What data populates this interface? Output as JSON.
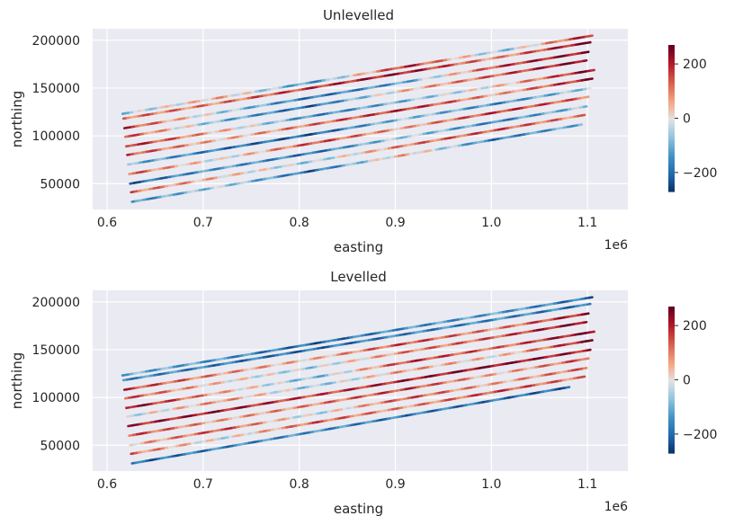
{
  "chart_data": [
    {
      "type": "scatter",
      "title": "Unlevelled",
      "xlabel": "easting",
      "ylabel": "northing",
      "x_offset_label": "1e6",
      "xlim": [
        0.585,
        1.142
      ],
      "ylim": [
        23000,
        212000
      ],
      "xticks": [
        0.6,
        0.7,
        0.8,
        0.9,
        1.0,
        1.1
      ],
      "xtick_labels": [
        "0.6",
        "0.7",
        "0.8",
        "0.9",
        "1.0",
        "1.1"
      ],
      "yticks": [
        50000,
        100000,
        150000,
        200000
      ],
      "ytick_labels": [
        "50000",
        "100000",
        "150000",
        "200000"
      ],
      "colorbar": {
        "ticks": [
          -200,
          0,
          200
        ],
        "tick_labels": [
          "−200",
          "0",
          "200"
        ],
        "range": [
          -270,
          270
        ],
        "cmap": "RdBu_r"
      },
      "grid": true,
      "flight_lines_note": "parallel survey lines rising west to east, coloured by residual value",
      "series_lines": [
        {
          "x": [
            0.626,
            1.095
          ],
          "y": [
            31000,
            112000
          ],
          "profile": [
            -150,
            -40,
            -200,
            60,
            -170,
            -90
          ]
        },
        {
          "x": [
            0.625,
            1.098
          ],
          "y": [
            41000,
            122000
          ],
          "profile": [
            120,
            40,
            -60,
            110,
            150,
            90
          ]
        },
        {
          "x": [
            0.624,
            1.1
          ],
          "y": [
            50000,
            131000
          ],
          "profile": [
            -200,
            -120,
            -180,
            -40,
            -160,
            -60
          ]
        },
        {
          "x": [
            0.623,
            1.102
          ],
          "y": [
            60000,
            141000
          ],
          "profile": [
            140,
            -20,
            160,
            60,
            180,
            120
          ]
        },
        {
          "x": [
            0.622,
            1.104
          ],
          "y": [
            70000,
            150000
          ],
          "profile": [
            -90,
            -180,
            -210,
            -60,
            -150,
            -40
          ]
        },
        {
          "x": [
            0.621,
            1.106
          ],
          "y": [
            80000,
            160000
          ],
          "profile": [
            160,
            40,
            120,
            190,
            60,
            230
          ]
        },
        {
          "x": [
            0.62,
            1.108
          ],
          "y": [
            89000,
            169000
          ],
          "profile": [
            200,
            50,
            -160,
            -80,
            30,
            250
          ]
        },
        {
          "x": [
            0.619,
            1.1
          ],
          "y": [
            99000,
            179000
          ],
          "profile": [
            160,
            -90,
            -200,
            40,
            140,
            260
          ]
        },
        {
          "x": [
            0.618,
            1.102
          ],
          "y": [
            108000,
            188000
          ],
          "profile": [
            180,
            -40,
            -180,
            -120,
            170,
            240
          ]
        },
        {
          "x": [
            0.617,
            1.104
          ],
          "y": [
            118000,
            198000
          ],
          "profile": [
            120,
            100,
            180,
            220,
            80,
            260
          ]
        },
        {
          "x": [
            0.616,
            1.106
          ],
          "y": [
            123000,
            205000
          ],
          "profile": [
            -60,
            60,
            -140,
            200,
            -80,
            230
          ]
        }
      ]
    },
    {
      "type": "scatter",
      "title": "Levelled",
      "xlabel": "easting",
      "ylabel": "northing",
      "x_offset_label": "1e6",
      "xlim": [
        0.585,
        1.142
      ],
      "ylim": [
        23000,
        212000
      ],
      "xticks": [
        0.6,
        0.7,
        0.8,
        0.9,
        1.0,
        1.1
      ],
      "xtick_labels": [
        "0.6",
        "0.7",
        "0.8",
        "0.9",
        "1.0",
        "1.1"
      ],
      "yticks": [
        50000,
        100000,
        150000,
        200000
      ],
      "ytick_labels": [
        "50000",
        "100000",
        "150000",
        "200000"
      ],
      "colorbar": {
        "ticks": [
          -200,
          0,
          200
        ],
        "tick_labels": [
          "−200",
          "0",
          "200"
        ],
        "range": [
          -270,
          270
        ],
        "cmap": "RdBu_r"
      },
      "grid": true,
      "series_lines": [
        {
          "x": [
            0.626,
            1.082
          ],
          "y": [
            31000,
            111000
          ],
          "profile": [
            -200,
            -160,
            -140,
            -170,
            -180,
            -200
          ]
        },
        {
          "x": [
            0.625,
            1.098
          ],
          "y": [
            41000,
            122000
          ],
          "profile": [
            120,
            -20,
            140,
            80,
            160,
            100
          ]
        },
        {
          "x": [
            0.624,
            1.1
          ],
          "y": [
            50000,
            131000
          ],
          "profile": [
            40,
            160,
            -40,
            150,
            60,
            130
          ]
        },
        {
          "x": [
            0.623,
            1.102
          ],
          "y": [
            60000,
            141000
          ],
          "profile": [
            160,
            60,
            100,
            170,
            40,
            160
          ]
        },
        {
          "x": [
            0.622,
            1.104
          ],
          "y": [
            70000,
            150000
          ],
          "profile": [
            200,
            220,
            160,
            210,
            240,
            200
          ]
        },
        {
          "x": [
            0.621,
            1.106
          ],
          "y": [
            80000,
            160000
          ],
          "profile": [
            -30,
            90,
            -70,
            80,
            20,
            250
          ]
        },
        {
          "x": [
            0.62,
            1.108
          ],
          "y": [
            89000,
            169000
          ],
          "profile": [
            240,
            60,
            -90,
            180,
            120,
            260
          ]
        },
        {
          "x": [
            0.619,
            1.1
          ],
          "y": [
            99000,
            179000
          ],
          "profile": [
            150,
            30,
            -50,
            100,
            140,
            260
          ]
        },
        {
          "x": [
            0.618,
            1.102
          ],
          "y": [
            108000,
            188000
          ],
          "profile": [
            170,
            90,
            40,
            160,
            90,
            230
          ]
        },
        {
          "x": [
            0.617,
            1.104
          ],
          "y": [
            118000,
            198000
          ],
          "profile": [
            -140,
            -170,
            -190,
            -160,
            -150,
            -180
          ]
        },
        {
          "x": [
            0.616,
            1.106
          ],
          "y": [
            123000,
            205000
          ],
          "profile": [
            -90,
            -130,
            -200,
            -140,
            -120,
            -190
          ]
        }
      ]
    }
  ]
}
